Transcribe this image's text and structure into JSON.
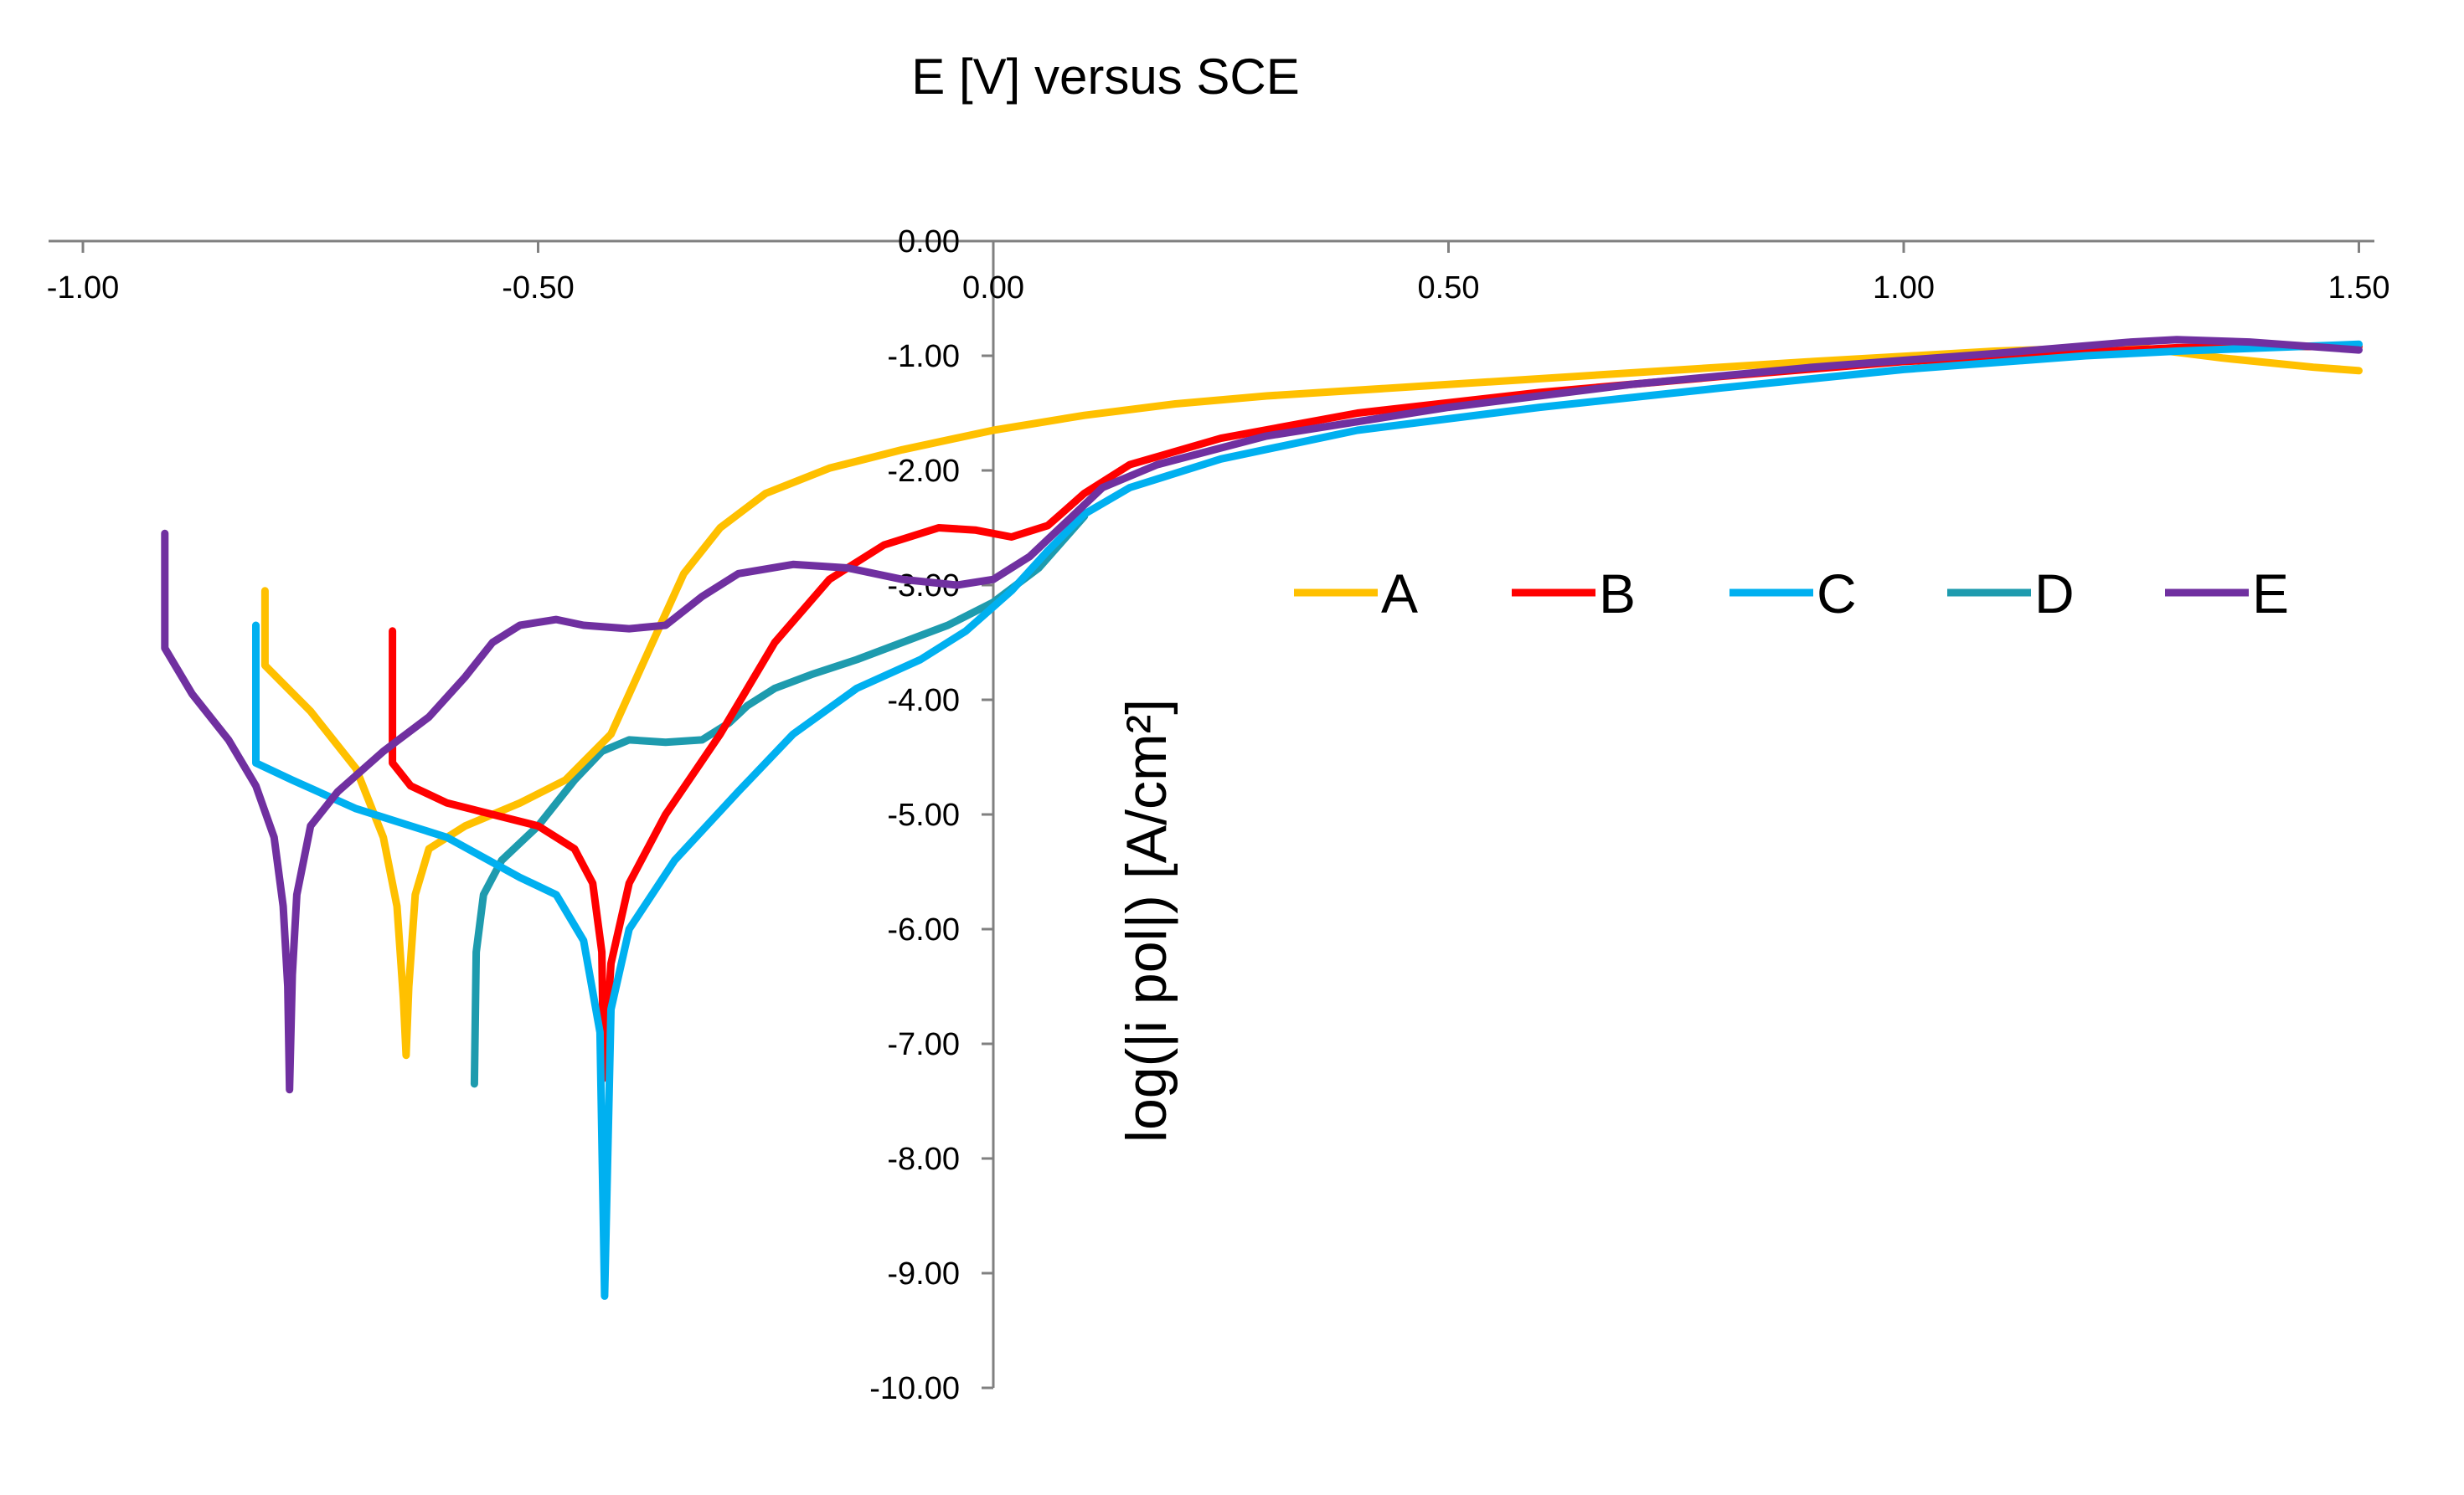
{
  "chart_data": {
    "type": "line",
    "title": "E [V] versus SCE",
    "xlabel": "",
    "ylabel": "log(|i pol|) [A/cm²]",
    "xlim": [
      -1.0,
      1.5
    ],
    "ylim": [
      -10.0,
      0.0
    ],
    "x_ticks": [
      "-1.00",
      "-0.50",
      "0.00",
      "0.50",
      "1.00",
      "1.50"
    ],
    "y_ticks": [
      "0.00",
      "-1.00",
      "-2.00",
      "-3.00",
      "-4.00",
      "-5.00",
      "-6.00",
      "-7.00",
      "-8.00",
      "-9.00",
      "-10.00"
    ],
    "x_axis_position": "top",
    "y_axis_at_x": 0.0,
    "legend_position": "right",
    "grid": false,
    "series": [
      {
        "name": "A",
        "color": "#FFC000",
        "points": [
          [
            -0.8,
            -3.05
          ],
          [
            -0.8,
            -3.7
          ],
          [
            -0.75,
            -4.1
          ],
          [
            -0.7,
            -4.6
          ],
          [
            -0.67,
            -5.2
          ],
          [
            -0.655,
            -5.8
          ],
          [
            -0.648,
            -6.6
          ],
          [
            -0.645,
            -7.1
          ],
          [
            -0.642,
            -6.5
          ],
          [
            -0.635,
            -5.7
          ],
          [
            -0.62,
            -5.3
          ],
          [
            -0.58,
            -5.1
          ],
          [
            -0.52,
            -4.9
          ],
          [
            -0.47,
            -4.7
          ],
          [
            -0.42,
            -4.3
          ],
          [
            -0.38,
            -3.6
          ],
          [
            -0.34,
            -2.9
          ],
          [
            -0.3,
            -2.5
          ],
          [
            -0.25,
            -2.2
          ],
          [
            -0.18,
            -1.98
          ],
          [
            -0.1,
            -1.82
          ],
          [
            0.0,
            -1.65
          ],
          [
            0.1,
            -1.52
          ],
          [
            0.2,
            -1.42
          ],
          [
            0.3,
            -1.35
          ],
          [
            0.5,
            -1.25
          ],
          [
            0.7,
            -1.15
          ],
          [
            0.9,
            -1.05
          ],
          [
            1.1,
            -0.96
          ],
          [
            1.25,
            -0.92
          ],
          [
            1.35,
            -1.02
          ],
          [
            1.45,
            -1.1
          ],
          [
            1.5,
            -1.13
          ]
        ]
      },
      {
        "name": "B",
        "color": "#FF0000",
        "points": [
          [
            -0.66,
            -3.4
          ],
          [
            -0.66,
            -4.55
          ],
          [
            -0.64,
            -4.75
          ],
          [
            -0.6,
            -4.9
          ],
          [
            -0.55,
            -5.0
          ],
          [
            -0.5,
            -5.1
          ],
          [
            -0.46,
            -5.3
          ],
          [
            -0.44,
            -5.6
          ],
          [
            -0.43,
            -6.2
          ],
          [
            -0.428,
            -7.3
          ],
          [
            -0.42,
            -6.3
          ],
          [
            -0.4,
            -5.6
          ],
          [
            -0.36,
            -5.0
          ],
          [
            -0.3,
            -4.3
          ],
          [
            -0.24,
            -3.5
          ],
          [
            -0.18,
            -2.95
          ],
          [
            -0.12,
            -2.65
          ],
          [
            -0.06,
            -2.5
          ],
          [
            -0.02,
            -2.52
          ],
          [
            0.02,
            -2.58
          ],
          [
            0.06,
            -2.48
          ],
          [
            0.1,
            -2.2
          ],
          [
            0.15,
            -1.95
          ],
          [
            0.25,
            -1.72
          ],
          [
            0.4,
            -1.5
          ],
          [
            0.6,
            -1.32
          ],
          [
            0.8,
            -1.18
          ],
          [
            1.0,
            -1.05
          ],
          [
            1.2,
            -0.97
          ],
          [
            1.3,
            -0.93
          ],
          [
            1.4,
            -0.92
          ],
          [
            1.5,
            -0.92
          ]
        ]
      },
      {
        "name": "C",
        "color": "#00B0F0",
        "points": [
          [
            -0.81,
            -3.35
          ],
          [
            -0.81,
            -4.55
          ],
          [
            -0.77,
            -4.7
          ],
          [
            -0.7,
            -4.95
          ],
          [
            -0.6,
            -5.2
          ],
          [
            -0.52,
            -5.55
          ],
          [
            -0.48,
            -5.7
          ],
          [
            -0.45,
            -6.1
          ],
          [
            -0.432,
            -6.9
          ],
          [
            -0.427,
            -9.2
          ],
          [
            -0.42,
            -6.7
          ],
          [
            -0.4,
            -6.0
          ],
          [
            -0.35,
            -5.4
          ],
          [
            -0.28,
            -4.8
          ],
          [
            -0.22,
            -4.3
          ],
          [
            -0.15,
            -3.9
          ],
          [
            -0.08,
            -3.65
          ],
          [
            -0.03,
            -3.4
          ],
          [
            0.02,
            -3.05
          ],
          [
            0.06,
            -2.7
          ],
          [
            0.1,
            -2.38
          ],
          [
            0.15,
            -2.15
          ],
          [
            0.25,
            -1.9
          ],
          [
            0.4,
            -1.65
          ],
          [
            0.6,
            -1.45
          ],
          [
            0.8,
            -1.28
          ],
          [
            1.0,
            -1.12
          ],
          [
            1.2,
            -1.0
          ],
          [
            1.3,
            -0.96
          ],
          [
            1.4,
            -0.93
          ],
          [
            1.5,
            -0.9
          ]
        ]
      },
      {
        "name": "D",
        "color": "#1E9BAE",
        "points": [
          [
            -0.57,
            -7.35
          ],
          [
            -0.568,
            -6.2
          ],
          [
            -0.56,
            -5.7
          ],
          [
            -0.54,
            -5.4
          ],
          [
            -0.5,
            -5.1
          ],
          [
            -0.46,
            -4.7
          ],
          [
            -0.43,
            -4.45
          ],
          [
            -0.4,
            -4.35
          ],
          [
            -0.36,
            -4.37
          ],
          [
            -0.32,
            -4.35
          ],
          [
            -0.29,
            -4.2
          ],
          [
            -0.27,
            -4.05
          ],
          [
            -0.24,
            -3.9
          ],
          [
            -0.2,
            -3.78
          ],
          [
            -0.15,
            -3.65
          ],
          [
            -0.1,
            -3.5
          ],
          [
            -0.05,
            -3.35
          ],
          [
            0.0,
            -3.15
          ],
          [
            0.05,
            -2.85
          ],
          [
            0.1,
            -2.4
          ]
        ]
      },
      {
        "name": "E",
        "color": "#7030A0",
        "points": [
          [
            -0.91,
            -2.55
          ],
          [
            -0.91,
            -3.55
          ],
          [
            -0.88,
            -3.95
          ],
          [
            -0.84,
            -4.35
          ],
          [
            -0.81,
            -4.75
          ],
          [
            -0.79,
            -5.2
          ],
          [
            -0.78,
            -5.8
          ],
          [
            -0.775,
            -6.5
          ],
          [
            -0.773,
            -7.4
          ],
          [
            -0.77,
            -6.4
          ],
          [
            -0.765,
            -5.7
          ],
          [
            -0.75,
            -5.1
          ],
          [
            -0.72,
            -4.8
          ],
          [
            -0.67,
            -4.45
          ],
          [
            -0.62,
            -4.15
          ],
          [
            -0.58,
            -3.8
          ],
          [
            -0.55,
            -3.5
          ],
          [
            -0.52,
            -3.35
          ],
          [
            -0.48,
            -3.3
          ],
          [
            -0.45,
            -3.35
          ],
          [
            -0.4,
            -3.38
          ],
          [
            -0.36,
            -3.35
          ],
          [
            -0.32,
            -3.1
          ],
          [
            -0.28,
            -2.9
          ],
          [
            -0.22,
            -2.82
          ],
          [
            -0.16,
            -2.85
          ],
          [
            -0.1,
            -2.95
          ],
          [
            -0.04,
            -3.0
          ],
          [
            0.0,
            -2.95
          ],
          [
            0.04,
            -2.75
          ],
          [
            0.08,
            -2.45
          ],
          [
            0.12,
            -2.15
          ],
          [
            0.18,
            -1.95
          ],
          [
            0.3,
            -1.7
          ],
          [
            0.5,
            -1.45
          ],
          [
            0.7,
            -1.25
          ],
          [
            0.9,
            -1.1
          ],
          [
            1.1,
            -0.98
          ],
          [
            1.25,
            -0.88
          ],
          [
            1.3,
            -0.86
          ],
          [
            1.38,
            -0.88
          ],
          [
            1.5,
            -0.95
          ]
        ]
      }
    ]
  }
}
